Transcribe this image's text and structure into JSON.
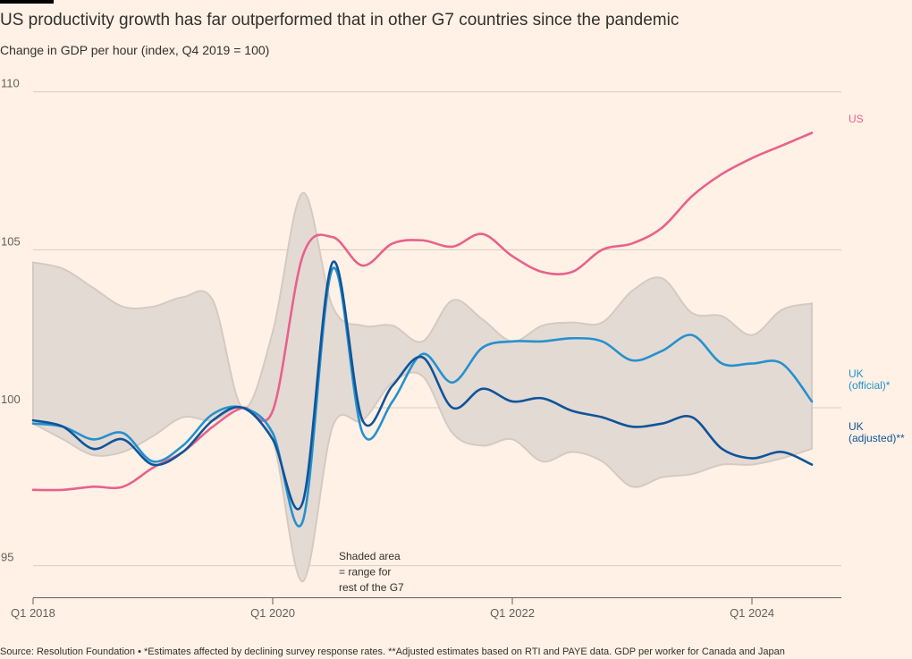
{
  "title": "US productivity growth has far outperformed that in other G7 countries since the pandemic",
  "subtitle": "Change in GDP per hour (index, Q4 2019 = 100)",
  "source": "Source: Resolution Foundation • *Estimates affected by declining survey response rates. **Adjusted estimates based on RTI and PAYE data. GDP per worker for Canada and Japan",
  "chart_data": {
    "type": "line",
    "title": "US productivity growth has far outperformed that in other G7 countries since the pandemic",
    "subtitle": "Change in GDP per hour (index, Q4 2019 = 100)",
    "ylim": [
      94,
      111
    ],
    "xlim": [
      "2018-01",
      "2024-10"
    ],
    "y_ticks": [
      95,
      100,
      105,
      110
    ],
    "x_ticks": [
      "Q1 2018",
      "Q1 2020",
      "Q1 2022",
      "Q1 2024"
    ],
    "grid": "horizontal",
    "x": [
      "Q1 2018",
      "Q2 2018",
      "Q3 2018",
      "Q4 2018",
      "Q1 2019",
      "Q2 2019",
      "Q3 2019",
      "Q4 2019",
      "Q1 2020",
      "Q2 2020",
      "Q3 2020",
      "Q4 2020",
      "Q1 2021",
      "Q2 2021",
      "Q3 2021",
      "Q4 2021",
      "Q1 2022",
      "Q2 2022",
      "Q3 2022",
      "Q4 2022",
      "Q1 2023",
      "Q2 2023",
      "Q3 2023",
      "Q4 2023",
      "Q1 2024",
      "Q2 2024",
      "Q3 2024"
    ],
    "series": [
      {
        "name": "US",
        "color": "#e8618c",
        "values": [
          97.4,
          97.4,
          97.5,
          97.5,
          98.1,
          98.6,
          99.4,
          100.0,
          99.9,
          104.8,
          105.4,
          104.5,
          105.2,
          105.3,
          105.1,
          105.5,
          104.8,
          104.3,
          104.3,
          105.0,
          105.2,
          105.7,
          106.7,
          107.4,
          107.9,
          108.3,
          108.7
        ]
      },
      {
        "name": "UK (official)*",
        "color": "#2591ce",
        "values": [
          99.5,
          99.4,
          99.0,
          99.2,
          98.3,
          98.8,
          99.8,
          100.0,
          99.2,
          96.4,
          104.4,
          99.2,
          100.2,
          101.7,
          100.8,
          101.9,
          102.1,
          102.1,
          102.2,
          102.1,
          101.5,
          101.8,
          102.3,
          101.4,
          101.4,
          101.4,
          100.2
        ]
      },
      {
        "name": "UK (adjusted)**",
        "color": "#0f5499",
        "values": [
          99.6,
          99.4,
          98.7,
          99.0,
          98.2,
          98.6,
          99.6,
          100.0,
          99.0,
          97.0,
          104.6,
          99.6,
          100.7,
          101.6,
          100.0,
          100.6,
          100.2,
          100.3,
          99.9,
          99.7,
          99.4,
          99.5,
          99.7,
          98.7,
          98.4,
          98.6,
          98.2
        ]
      },
      {
        "name": "G7 range upper",
        "color": "#e0d7d1",
        "values": [
          104.6,
          104.4,
          103.8,
          103.2,
          103.2,
          103.5,
          103.4,
          100.0,
          102.4,
          106.8,
          103.2,
          102.6,
          102.6,
          102.1,
          103.4,
          102.8,
          102.1,
          102.6,
          102.7,
          102.7,
          103.7,
          104.1,
          103.0,
          102.9,
          102.3,
          103.1,
          103.3
        ]
      },
      {
        "name": "G7 range lower",
        "color": "#e0d7d1",
        "values": [
          99.5,
          99.0,
          98.5,
          98.6,
          99.1,
          99.7,
          99.6,
          100.0,
          99.0,
          94.5,
          99.4,
          99.6,
          100.8,
          101.0,
          99.2,
          98.8,
          99.0,
          98.3,
          98.6,
          98.3,
          97.5,
          97.8,
          97.9,
          98.2,
          98.2,
          98.4,
          98.7
        ]
      }
    ],
    "series_labels": {
      "us": "US",
      "uk_official": [
        "UK",
        "(official)*"
      ],
      "uk_adjusted": [
        "UK",
        "(adjusted)**"
      ]
    },
    "annotation": [
      "Shaded area",
      "= range for",
      "rest of the G7"
    ]
  }
}
